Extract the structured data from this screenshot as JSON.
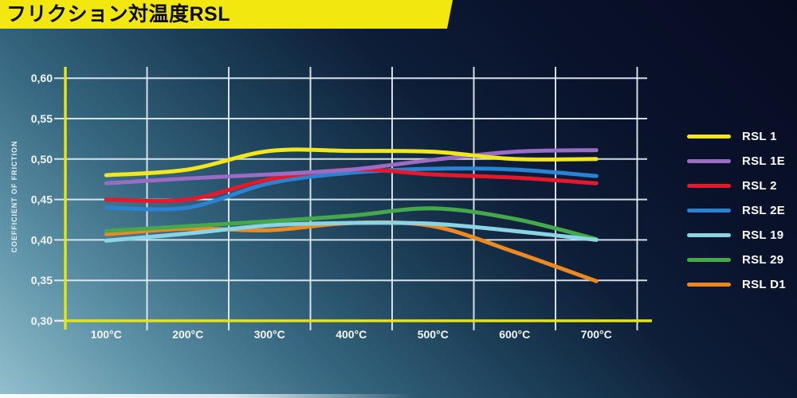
{
  "header": {
    "title": "フリクション対温度RSL"
  },
  "chart_data": {
    "type": "line",
    "title": "フリクション対温度RSL",
    "ylabel": "COEFFICIENT OF FRICTION",
    "xlabel": "",
    "categories": [
      "100°C",
      "200°C",
      "300°C",
      "400°C",
      "500°C",
      "600°C",
      "700°C"
    ],
    "x_values": [
      100,
      200,
      300,
      400,
      500,
      600,
      700
    ],
    "ylim": [
      0.3,
      0.6
    ],
    "grid": true,
    "legend_position": "right",
    "y_ticks": [
      {
        "value": 0.6,
        "label": "0,60"
      },
      {
        "value": 0.55,
        "label": "0,55"
      },
      {
        "value": 0.5,
        "label": "0,50"
      },
      {
        "value": 0.45,
        "label": "0,45"
      },
      {
        "value": 0.4,
        "label": "0,40"
      },
      {
        "value": 0.35,
        "label": "0,35"
      },
      {
        "value": 0.3,
        "label": "0,30"
      }
    ],
    "series": [
      {
        "name": "RSL 1",
        "color": "#f0e71c",
        "values": [
          0.48,
          0.487,
          0.51,
          0.51,
          0.509,
          0.5,
          0.5
        ]
      },
      {
        "name": "RSL 1E",
        "color": "#9b6cc4",
        "values": [
          0.47,
          0.476,
          0.481,
          0.487,
          0.499,
          0.509,
          0.511
        ]
      },
      {
        "name": "RSL 2",
        "color": "#e5192b",
        "values": [
          0.45,
          0.45,
          0.475,
          0.487,
          0.481,
          0.477,
          0.47
        ]
      },
      {
        "name": "RSL 2E",
        "color": "#2c82d2",
        "values": [
          0.44,
          0.44,
          0.47,
          0.483,
          0.488,
          0.487,
          0.479
        ]
      },
      {
        "name": "RSL 19",
        "color": "#8ad4e4",
        "values": [
          0.399,
          0.408,
          0.418,
          0.421,
          0.42,
          0.411,
          0.4
        ]
      },
      {
        "name": "RSL 29",
        "color": "#45a94c",
        "values": [
          0.411,
          0.417,
          0.423,
          0.43,
          0.439,
          0.426,
          0.401
        ]
      },
      {
        "name": "RSL D1",
        "color": "#ec8a21",
        "values": [
          0.407,
          0.414,
          0.412,
          0.421,
          0.417,
          0.385,
          0.349
        ]
      }
    ],
    "colors": {
      "axis": "#e6e312",
      "gridline": "#e6edf3",
      "tick_text": "#f4f8fb",
      "banner": "#f2e70e",
      "banner_text": "#0b0b0b"
    }
  }
}
